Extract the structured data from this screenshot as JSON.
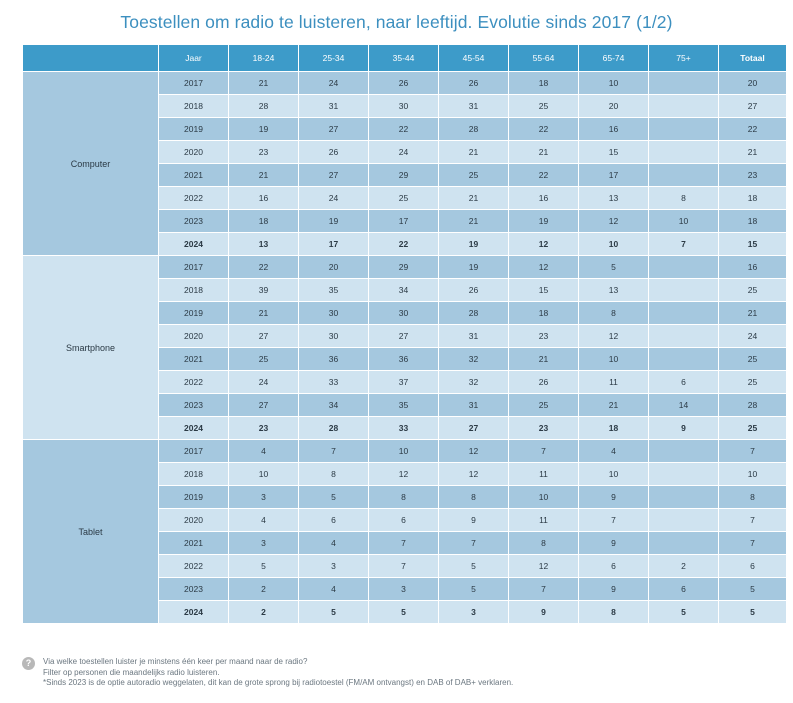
{
  "title": "Toestellen om radio te luisteren, naar leeftijd. Evolutie sinds 2017 (1/2)",
  "columns": [
    "Jaar",
    "18-24",
    "25-34",
    "35-44",
    "45-54",
    "55-64",
    "65-74",
    "75+",
    "Totaal"
  ],
  "groups": [
    {
      "label": "Computer",
      "rows": [
        {
          "year": "2017",
          "values": [
            "21",
            "24",
            "26",
            "26",
            "18",
            "10",
            "",
            "20"
          ]
        },
        {
          "year": "2018",
          "values": [
            "28",
            "31",
            "30",
            "31",
            "25",
            "20",
            "",
            "27"
          ]
        },
        {
          "year": "2019",
          "values": [
            "19",
            "27",
            "22",
            "28",
            "22",
            "16",
            "",
            "22"
          ]
        },
        {
          "year": "2020",
          "values": [
            "23",
            "26",
            "24",
            "21",
            "21",
            "15",
            "",
            "21"
          ]
        },
        {
          "year": "2021",
          "values": [
            "21",
            "27",
            "29",
            "25",
            "22",
            "17",
            "",
            "23"
          ]
        },
        {
          "year": "2022",
          "values": [
            "16",
            "24",
            "25",
            "21",
            "16",
            "13",
            "8",
            "18"
          ]
        },
        {
          "year": "2023",
          "values": [
            "18",
            "19",
            "17",
            "21",
            "19",
            "12",
            "10",
            "18"
          ]
        },
        {
          "year": "2024",
          "values": [
            "13",
            "17",
            "22",
            "19",
            "12",
            "10",
            "7",
            "15"
          ]
        }
      ]
    },
    {
      "label": "Smartphone",
      "rows": [
        {
          "year": "2017",
          "values": [
            "22",
            "20",
            "29",
            "19",
            "12",
            "5",
            "",
            "16"
          ]
        },
        {
          "year": "2018",
          "values": [
            "39",
            "35",
            "34",
            "26",
            "15",
            "13",
            "",
            "25"
          ]
        },
        {
          "year": "2019",
          "values": [
            "21",
            "30",
            "30",
            "28",
            "18",
            "8",
            "",
            "21"
          ]
        },
        {
          "year": "2020",
          "values": [
            "27",
            "30",
            "27",
            "31",
            "23",
            "12",
            "",
            "24"
          ]
        },
        {
          "year": "2021",
          "values": [
            "25",
            "36",
            "36",
            "32",
            "21",
            "10",
            "",
            "25"
          ]
        },
        {
          "year": "2022",
          "values": [
            "24",
            "33",
            "37",
            "32",
            "26",
            "11",
            "6",
            "25"
          ]
        },
        {
          "year": "2023",
          "values": [
            "27",
            "34",
            "35",
            "31",
            "25",
            "21",
            "14",
            "28"
          ]
        },
        {
          "year": "2024",
          "values": [
            "23",
            "28",
            "33",
            "27",
            "23",
            "18",
            "9",
            "25"
          ]
        }
      ]
    },
    {
      "label": "Tablet",
      "rows": [
        {
          "year": "2017",
          "values": [
            "4",
            "7",
            "10",
            "12",
            "7",
            "4",
            "",
            "7"
          ]
        },
        {
          "year": "2018",
          "values": [
            "10",
            "8",
            "12",
            "12",
            "11",
            "10",
            "",
            "10"
          ]
        },
        {
          "year": "2019",
          "values": [
            "3",
            "5",
            "8",
            "8",
            "10",
            "9",
            "",
            "8"
          ]
        },
        {
          "year": "2020",
          "values": [
            "4",
            "6",
            "6",
            "9",
            "11",
            "7",
            "",
            "7"
          ]
        },
        {
          "year": "2021",
          "values": [
            "3",
            "4",
            "7",
            "7",
            "8",
            "9",
            "",
            "7"
          ]
        },
        {
          "year": "2022",
          "values": [
            "5",
            "3",
            "7",
            "5",
            "12",
            "6",
            "2",
            "6"
          ]
        },
        {
          "year": "2023",
          "values": [
            "2",
            "4",
            "3",
            "5",
            "7",
            "9",
            "6",
            "5"
          ]
        },
        {
          "year": "2024",
          "values": [
            "2",
            "5",
            "5",
            "3",
            "9",
            "8",
            "5",
            "5"
          ]
        }
      ]
    }
  ],
  "bold_year": "2024",
  "footnote": {
    "icon": "question-mark-icon",
    "icon_glyph": "?",
    "lines": [
      "Via welke toestellen luister je minstens één keer per maand naar de radio?",
      "Filter op personen die maandelijks radio luisteren.",
      "*Sinds 2023 is de optie autoradio weggelaten, dit kan de grote sprong bij radiotoestel (FM/AM ontvangst) en DAB of DAB+ verklaren."
    ]
  },
  "colors": {
    "header": "#3d9bc9",
    "row_dark": "#a5c8df",
    "row_light": "#cfe3f0",
    "title": "#3c8fbf"
  }
}
